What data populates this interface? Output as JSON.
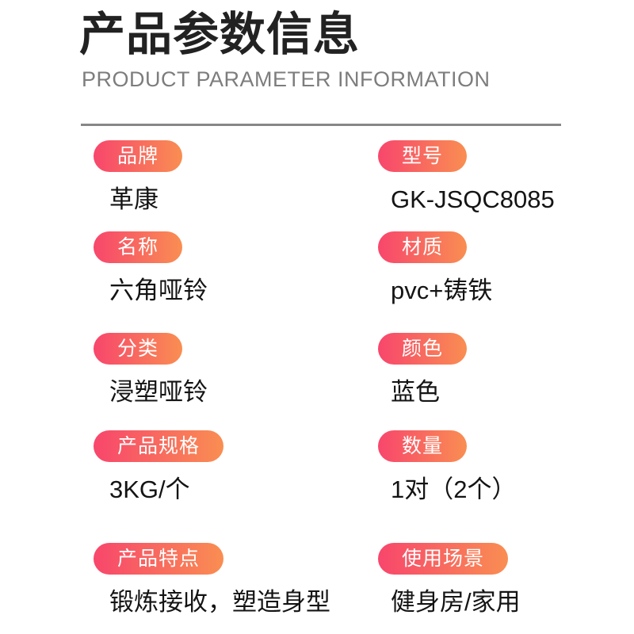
{
  "header": {
    "title": "产品参数信息",
    "subtitle": "PRODUCT PARAMETER INFORMATION"
  },
  "rows": [
    {
      "left": {
        "label": "品牌",
        "value": "革康"
      },
      "right": {
        "label": "型号",
        "value": "GK-JSQC8085"
      }
    },
    {
      "left": {
        "label": "名称",
        "value": "六角哑铃"
      },
      "right": {
        "label": "材质",
        "value": "pvc+铸铁"
      }
    },
    {
      "left": {
        "label": "分类",
        "value": "浸塑哑铃"
      },
      "right": {
        "label": "颜色",
        "value": "蓝色"
      }
    },
    {
      "left": {
        "label": "产品规格",
        "value": "3KG/个"
      },
      "right": {
        "label": "数量",
        "value": "1对（2个）"
      }
    },
    {
      "left": {
        "label": "产品特点",
        "value": "锻炼接收，塑造身型"
      },
      "right": {
        "label": "使用场景",
        "value": "健身房/家用"
      }
    }
  ],
  "colors": {
    "badge_gradient_start": "#f8466c",
    "badge_gradient_end": "#f98e52",
    "title_text": "#222222",
    "subtitle_text": "#7d7d7d",
    "divider": "#878787",
    "value_text": "#141414",
    "background": "#ffffff"
  }
}
